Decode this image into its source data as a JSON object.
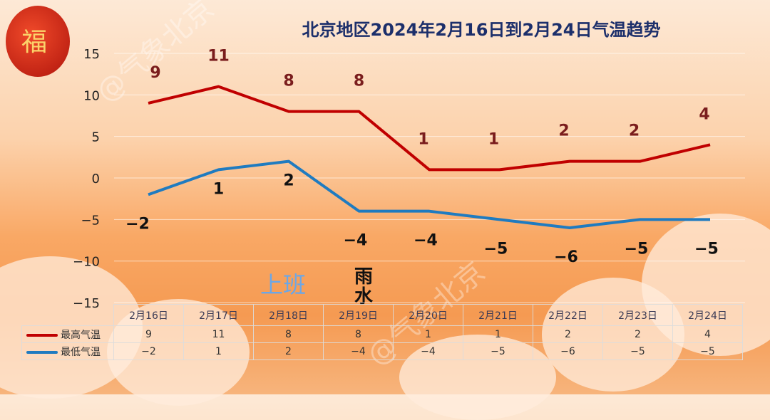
{
  "chart_data": {
    "type": "line",
    "title": "北京地区2024年2月16日到2月24日气温趋势",
    "categories": [
      "2月16日",
      "2月17日",
      "2月18日",
      "2月19日",
      "2月20日",
      "2月21日",
      "2月22日",
      "2月23日",
      "2月24日"
    ],
    "series": [
      {
        "name": "最高气温",
        "color": "#c00000",
        "values": [
          9,
          11,
          8,
          8,
          1,
          1,
          2,
          2,
          4
        ]
      },
      {
        "name": "最低气温",
        "color": "#1f7bc0",
        "values": [
          -2,
          1,
          2,
          -4,
          -4,
          -5,
          -6,
          -5,
          -5
        ]
      }
    ],
    "ylim": [
      -15,
      15
    ],
    "yticks": [
      15,
      10,
      5,
      0,
      -5,
      -10,
      -15
    ],
    "grid": true,
    "legend": "bottom-left in data table"
  },
  "decorations": {
    "shangban": "上班",
    "yushui_1": "雨",
    "yushui_2": "水",
    "watermark": "@气象北京",
    "lantern_char": "福"
  }
}
